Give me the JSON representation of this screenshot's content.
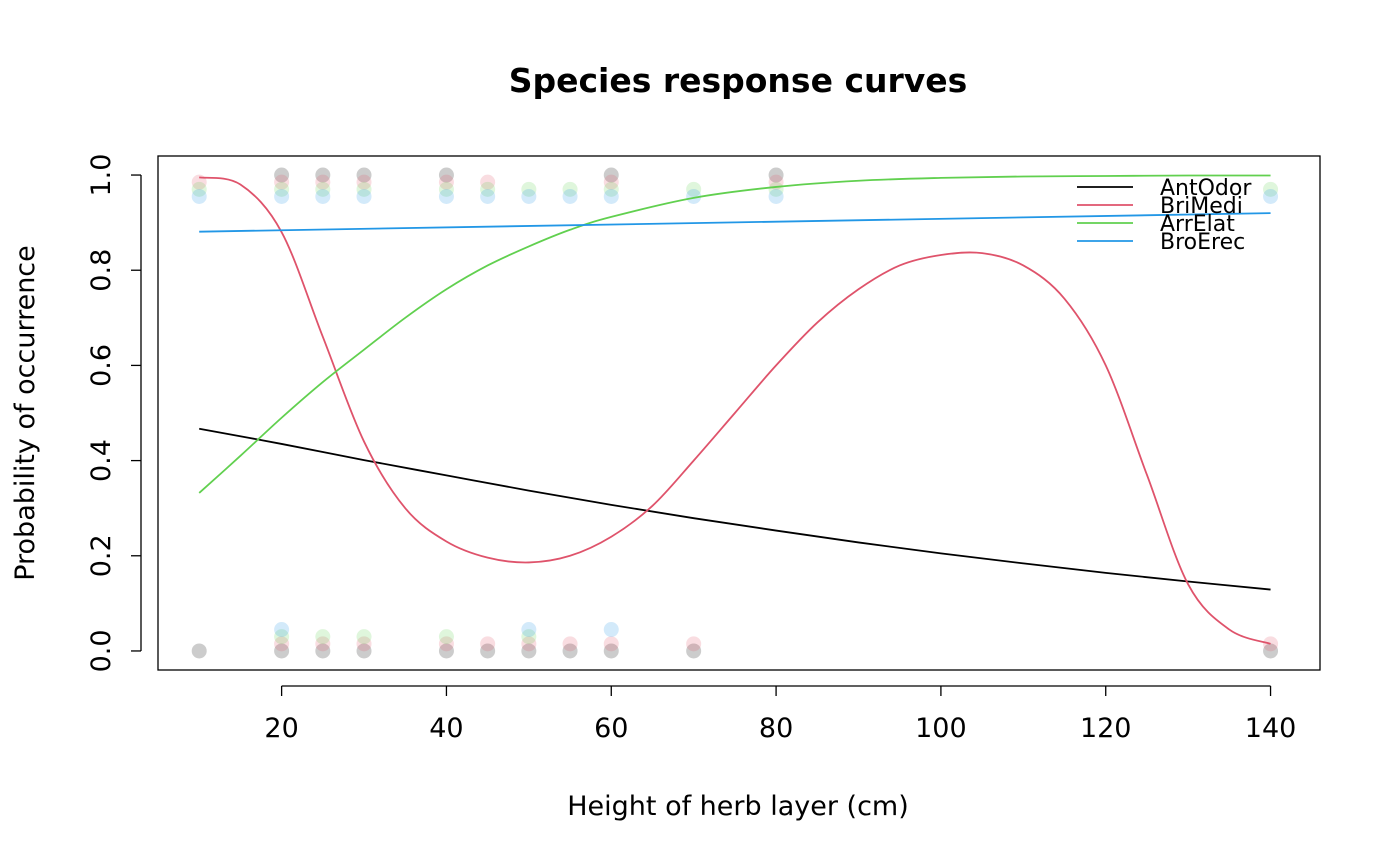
{
  "chart_data": {
    "type": "line",
    "title": "Species response curves",
    "xlabel": "Height of herb layer (cm)",
    "ylabel": "Probability of occurrence",
    "xlim": [
      5,
      146
    ],
    "ylim": [
      -0.04,
      1.04
    ],
    "xticks": [
      20,
      40,
      60,
      80,
      100,
      120,
      140
    ],
    "yticks": [
      0.0,
      0.2,
      0.4,
      0.6,
      0.8,
      1.0
    ],
    "xtick_labels": [
      "20",
      "40",
      "60",
      "80",
      "100",
      "120",
      "140"
    ],
    "ytick_labels": [
      "0.0",
      "0.2",
      "0.4",
      "0.6",
      "0.8",
      "1.0"
    ],
    "grid": false,
    "legend_position": "top-right",
    "series": [
      {
        "name": "AntOdor",
        "color": "#000000",
        "x": [
          10,
          20,
          30,
          40,
          50,
          60,
          70,
          80,
          90,
          100,
          110,
          120,
          130,
          140
        ],
        "y": [
          0.467,
          0.435,
          0.401,
          0.369,
          0.337,
          0.307,
          0.279,
          0.253,
          0.228,
          0.205,
          0.184,
          0.164,
          0.146,
          0.129
        ],
        "points": {
          "color": "rgba(0,0,0,0.2)",
          "offset": 0.0,
          "present": [
            20,
            25,
            30,
            40,
            60,
            80
          ],
          "absent": [
            10,
            20,
            25,
            30,
            40,
            45,
            50,
            55,
            60,
            70,
            140
          ]
        }
      },
      {
        "name": "BriMedi",
        "color": "#DF536B",
        "x": [
          10,
          15,
          20,
          25,
          30,
          35,
          40,
          45,
          50,
          55,
          60,
          65,
          70,
          75,
          80,
          85,
          90,
          95,
          100,
          105,
          110,
          115,
          120,
          125,
          130,
          135,
          140
        ],
        "y": [
          0.995,
          0.98,
          0.88,
          0.66,
          0.44,
          0.3,
          0.23,
          0.196,
          0.186,
          0.2,
          0.24,
          0.305,
          0.4,
          0.5,
          0.6,
          0.69,
          0.76,
          0.81,
          0.832,
          0.836,
          0.81,
          0.74,
          0.6,
          0.37,
          0.14,
          0.045,
          0.015
        ],
        "points": {
          "color": "rgba(223,83,107,0.2)",
          "offset": 0.015,
          "present": [
            10,
            20,
            25,
            30,
            40,
            45,
            60,
            80
          ],
          "absent": [
            20,
            25,
            30,
            40,
            45,
            50,
            55,
            60,
            70,
            140
          ]
        }
      },
      {
        "name": "ArrElat",
        "color": "#61D04F",
        "x": [
          10,
          15,
          20,
          25,
          30,
          35,
          40,
          45,
          50,
          55,
          60,
          70,
          80,
          90,
          100,
          110,
          120,
          130,
          140
        ],
        "y": [
          0.332,
          0.41,
          0.49,
          0.565,
          0.633,
          0.7,
          0.76,
          0.81,
          0.85,
          0.885,
          0.912,
          0.952,
          0.975,
          0.988,
          0.994,
          0.997,
          0.998,
          0.999,
          0.999
        ],
        "points": {
          "color": "rgba(97,208,79,0.2)",
          "offset": 0.03,
          "present": [
            10,
            20,
            25,
            30,
            40,
            45,
            50,
            55,
            60,
            70,
            80,
            140
          ],
          "absent": [
            20,
            25,
            30,
            40,
            50
          ]
        }
      },
      {
        "name": "BroErec",
        "color": "#2297E6",
        "x": [
          10,
          140
        ],
        "y": [
          0.881,
          0.92
        ],
        "points": {
          "color": "rgba(34,151,230,0.2)",
          "offset": 0.045,
          "present": [
            10,
            20,
            25,
            30,
            40,
            45,
            50,
            55,
            60,
            70,
            80,
            140
          ],
          "absent": [
            20,
            50,
            60
          ]
        }
      }
    ]
  }
}
